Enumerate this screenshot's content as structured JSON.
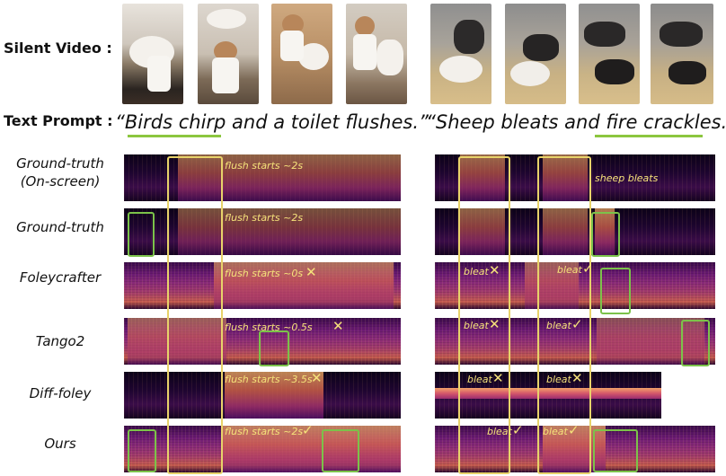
{
  "labels": {
    "silent_video": "Silent Video :",
    "text_prompt": "Text Prompt :"
  },
  "prompts": [
    {
      "open": "“",
      "highlight": "Birds chirp",
      "rest": " and a toilet flushes.”"
    },
    {
      "open": "“Sheep bleats and ",
      "highlight": "fire crackles",
      "rest": ".”"
    }
  ],
  "rows": [
    {
      "name": "Ground-truth (On-screen)",
      "line1": "Ground-truth",
      "line2": "(On-screen)",
      "left_anno": "flush starts ~2s",
      "left_mark": "",
      "right_anno": "sheep bleats",
      "right_anno2": "",
      "right_mark1": "",
      "right_mark2": ""
    },
    {
      "name": "Ground-truth",
      "line1": "Ground-truth",
      "line2": "",
      "left_anno": "flush starts ~2s",
      "left_mark": "",
      "right_anno": "",
      "right_anno2": "",
      "right_mark1": "",
      "right_mark2": ""
    },
    {
      "name": "Foleycrafter",
      "line1": "Foleycrafter",
      "line2": "",
      "left_anno": "flush starts ~0s",
      "left_mark": "✕",
      "right_anno": "bleat",
      "right_anno2": "bleat",
      "right_mark1": "✕",
      "right_mark2": "✓"
    },
    {
      "name": "Tango2",
      "line1": "Tango2",
      "line2": "",
      "left_anno": "flush starts ~0.5s",
      "left_mark": "✕",
      "right_anno": "bleat",
      "right_anno2": "bleat",
      "right_mark1": "✕",
      "right_mark2": "✓"
    },
    {
      "name": "Diff-foley",
      "line1": "Diff-foley",
      "line2": "",
      "left_anno": "flush starts ~3.5s",
      "left_mark": "✕",
      "right_anno": "bleat",
      "right_anno2": "bleat",
      "right_mark1": "✕",
      "right_mark2": "✕"
    },
    {
      "name": "Ours",
      "line1": "Ours",
      "line2": "",
      "left_anno": "flush starts ~2s",
      "left_mark": "✓",
      "right_anno": "bleat",
      "right_anno2": "bleat",
      "right_mark1": "✓",
      "right_mark2": "✓"
    }
  ],
  "colors": {
    "highlight_box": "#e8d36a",
    "green_box": "#7cc24a",
    "underline": "#8cc63f",
    "annotation_text": "#f5e27a"
  }
}
